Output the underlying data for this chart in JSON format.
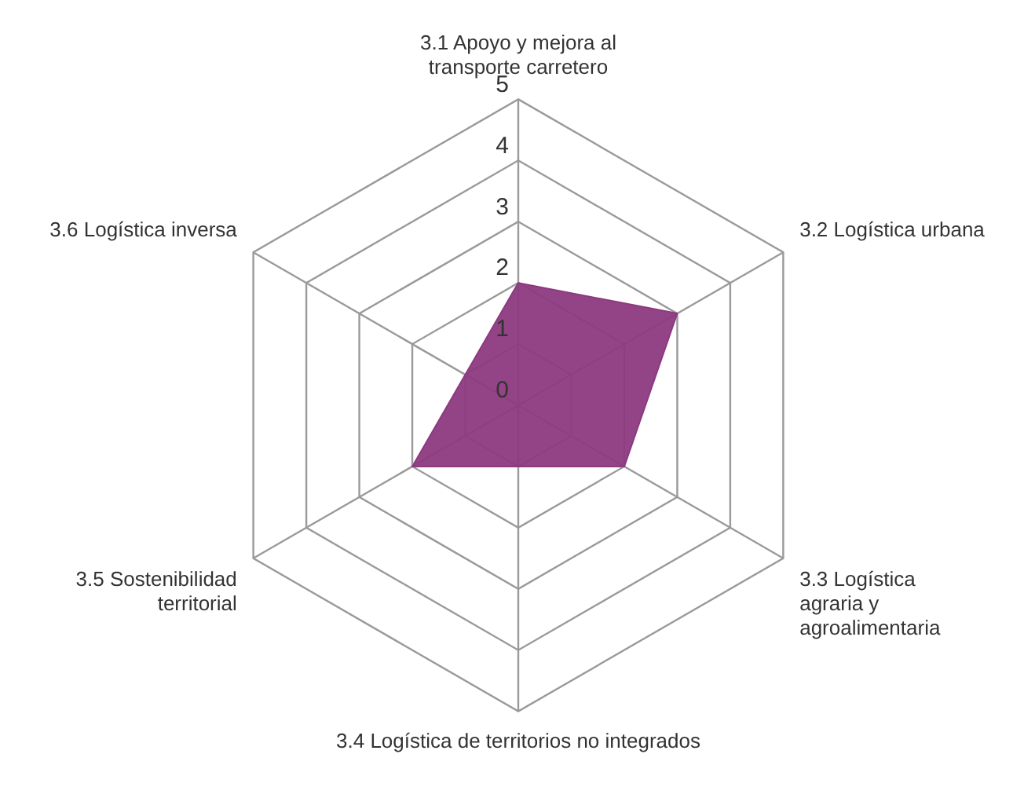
{
  "chart_data": {
    "type": "radar",
    "categories": [
      "3.1 Apoyo y mejora al transporte carretero",
      "3.2 Logística urbana",
      "3.3 Logística agraria y agroalimentaria",
      "3.4 Logística de territorios no integrados",
      "3.5 Sostenibilidad territorial",
      "3.6 Logística inversa"
    ],
    "series": [
      {
        "color": "#8c3a80",
        "values": [
          2,
          3,
          2,
          1,
          2,
          1
        ]
      }
    ],
    "ylim": [
      0,
      5
    ],
    "yticks": [
      0,
      1,
      2,
      3,
      4,
      5
    ],
    "grid": true,
    "legend": false
  }
}
